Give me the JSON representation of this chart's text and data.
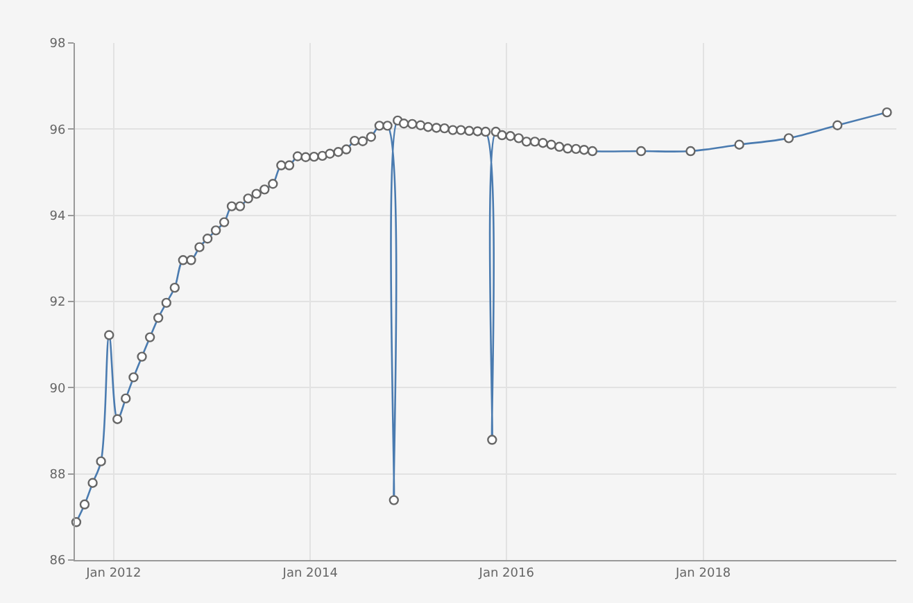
{
  "chart_data": {
    "type": "line",
    "x": [
      "2011-08-15",
      "2011-09-15",
      "2011-10-15",
      "2011-11-15",
      "2011-12-15",
      "2012-01-15",
      "2012-02-15",
      "2012-03-15",
      "2012-04-15",
      "2012-05-15",
      "2012-06-15",
      "2012-07-15",
      "2012-08-15",
      "2012-09-15",
      "2012-10-15",
      "2012-11-15",
      "2012-12-15",
      "2013-01-15",
      "2013-02-15",
      "2013-03-15",
      "2013-04-15",
      "2013-05-15",
      "2013-06-15",
      "2013-07-15",
      "2013-08-15",
      "2013-09-15",
      "2013-10-15",
      "2013-11-15",
      "2013-12-15",
      "2014-01-15",
      "2014-02-15",
      "2014-03-15",
      "2014-04-15",
      "2014-05-15",
      "2014-06-15",
      "2014-07-15",
      "2014-08-15",
      "2014-09-15",
      "2014-10-15",
      "2014-11-08",
      "2014-11-22",
      "2014-12-15",
      "2015-01-15",
      "2015-02-15",
      "2015-03-15",
      "2015-04-15",
      "2015-05-15",
      "2015-06-15",
      "2015-07-15",
      "2015-08-15",
      "2015-09-15",
      "2015-10-15",
      "2015-11-08",
      "2015-11-22",
      "2015-12-15",
      "2016-01-15",
      "2016-02-15",
      "2016-03-15",
      "2016-04-15",
      "2016-05-15",
      "2016-06-15",
      "2016-07-15",
      "2016-08-15",
      "2016-09-15",
      "2016-10-15",
      "2016-11-15",
      "2017-05-15",
      "2017-11-15",
      "2018-05-15",
      "2018-11-15",
      "2019-05-15",
      "2019-11-15"
    ],
    "series": [
      {
        "color": "#4a7bb0",
        "values": [
          86.88,
          87.29,
          87.79,
          88.29,
          91.22,
          89.27,
          89.75,
          90.24,
          90.72,
          91.17,
          91.62,
          91.97,
          92.32,
          92.96,
          92.96,
          93.26,
          93.46,
          93.65,
          93.84,
          94.21,
          94.21,
          94.39,
          94.5,
          94.6,
          94.73,
          95.16,
          95.16,
          95.37,
          95.35,
          95.36,
          95.38,
          95.43,
          95.47,
          95.53,
          95.73,
          95.72,
          95.82,
          96.08,
          96.08,
          87.39,
          96.2,
          96.13,
          96.12,
          96.09,
          96.05,
          96.03,
          96.02,
          95.98,
          95.98,
          95.96,
          95.95,
          95.94,
          88.79,
          95.94,
          95.86,
          95.84,
          95.79,
          95.71,
          95.71,
          95.68,
          95.64,
          95.59,
          95.55,
          95.54,
          95.52,
          95.49,
          95.49,
          95.49,
          95.64,
          95.79,
          96.09,
          96.39
        ]
      }
    ],
    "xlim": [
      "2011-08-10",
      "2019-12-20"
    ],
    "xticks": [
      {
        "value": "2012-01-01",
        "label": "Jan 2012"
      },
      {
        "value": "2014-01-01",
        "label": "Jan 2014"
      },
      {
        "value": "2016-01-01",
        "label": "Jan 2016"
      },
      {
        "value": "2018-01-01",
        "label": "Jan 2018"
      }
    ],
    "ylim": [
      86,
      98
    ],
    "yticks": [
      86,
      88,
      90,
      92,
      94,
      96,
      98
    ],
    "grid": true,
    "marker": "circle",
    "line_style": "solid"
  }
}
